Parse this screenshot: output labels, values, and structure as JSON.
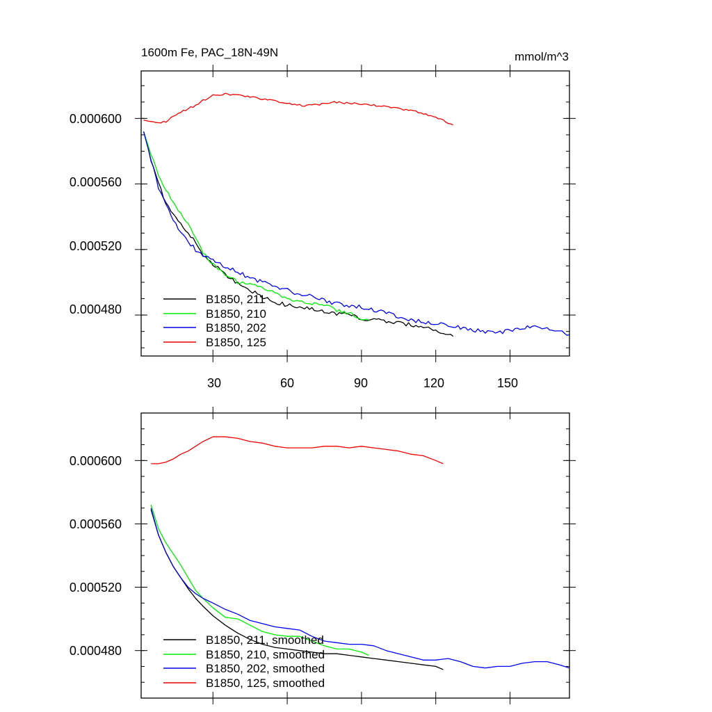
{
  "chart_data": [
    {
      "type": "line",
      "title": "1600m Fe, PAC_18N-49N",
      "units": "mmol/m^3",
      "xlim": [
        1,
        174
      ],
      "ylim": [
        0.000455,
        0.000629
      ],
      "xticks": [
        30,
        60,
        90,
        120,
        150
      ],
      "xtick_labels": [
        "30",
        "60",
        "90",
        "120",
        "150"
      ],
      "yticks": [
        0.00048,
        0.00052,
        0.00056,
        0.0006
      ],
      "ytick_labels": [
        "0.000480",
        "0.000520",
        "0.000560",
        "0.000600"
      ],
      "series": [
        {
          "name": "B1850, 211",
          "color": "#000000",
          "x": [
            2,
            5,
            8,
            11,
            14,
            17,
            20,
            23,
            26,
            30,
            35,
            40,
            45,
            50,
            55,
            60,
            65,
            70,
            75,
            80,
            85,
            90,
            95,
            100,
            105,
            110,
            115,
            120,
            127
          ],
          "y": [
            0.000592,
            0.000575,
            0.00056,
            0.000549,
            0.000541,
            0.000535,
            0.00053,
            0.000524,
            0.000517,
            0.000511,
            0.000505,
            0.000499,
            0.000495,
            0.000491,
            0.000488,
            0.000486,
            0.000485,
            0.000484,
            0.000482,
            0.000481,
            0.00048,
            0.000478,
            0.000477,
            0.000476,
            0.000475,
            0.000474,
            0.000473,
            0.000471,
            0.000467
          ],
          "jitter": 1.2e-06
        },
        {
          "name": "B1850, 210",
          "color": "#00ee00",
          "x": [
            2,
            5,
            8,
            11,
            14,
            17,
            20,
            23,
            26,
            30,
            35,
            40,
            45,
            50,
            55,
            60,
            65,
            70,
            75,
            80,
            85,
            90,
            93
          ],
          "y": [
            0.000592,
            0.000578,
            0.000565,
            0.000557,
            0.000549,
            0.000542,
            0.000535,
            0.000527,
            0.000518,
            0.000511,
            0.000505,
            0.0005,
            0.000499,
            0.000497,
            0.000494,
            0.00049,
            0.000488,
            0.000487,
            0.000486,
            0.000483,
            0.000481,
            0.000478,
            0.000477
          ],
          "jitter": 1e-06
        },
        {
          "name": "B1850, 202",
          "color": "#0000ee",
          "x": [
            2,
            5,
            8,
            11,
            14,
            17,
            20,
            23,
            26,
            30,
            35,
            40,
            45,
            50,
            55,
            60,
            65,
            70,
            75,
            80,
            85,
            90,
            95,
            100,
            105,
            110,
            115,
            120,
            125,
            130,
            135,
            140,
            145,
            150,
            155,
            160,
            165,
            170,
            174
          ],
          "y": [
            0.000592,
            0.000575,
            0.000558,
            0.000547,
            0.000538,
            0.000531,
            0.000525,
            0.00052,
            0.000517,
            0.000513,
            0.00051,
            0.000506,
            0.000503,
            0.0005,
            0.000497,
            0.000495,
            0.000493,
            0.000491,
            0.000489,
            0.000487,
            0.000486,
            0.000485,
            0.000483,
            0.000481,
            0.000479,
            0.000477,
            0.000476,
            0.000475,
            0.000474,
            0.000472,
            0.000471,
            0.00047,
            0.000469,
            0.000471,
            0.000472,
            0.000473,
            0.000472,
            0.00047,
            0.000468
          ],
          "jitter": 1.3e-06
        },
        {
          "name": "B1850, 125",
          "color": "#ee0000",
          "x": [
            2,
            5,
            8,
            11,
            14,
            17,
            20,
            23,
            26,
            30,
            35,
            40,
            45,
            50,
            55,
            60,
            65,
            70,
            75,
            80,
            85,
            90,
            95,
            100,
            105,
            110,
            115,
            120,
            127
          ],
          "y": [
            0.000599,
            0.000598,
            0.000597,
            0.000598,
            0.000601,
            0.000604,
            0.000606,
            0.000608,
            0.000611,
            0.000614,
            0.000615,
            0.000614,
            0.000613,
            0.000612,
            0.000611,
            0.000609,
            0.000608,
            0.000608,
            0.000609,
            0.00061,
            0.000609,
            0.000609,
            0.000608,
            0.000607,
            0.000606,
            0.000605,
            0.000603,
            0.000601,
            0.000596
          ],
          "jitter": 6e-07
        }
      ]
    },
    {
      "type": "line",
      "xlim": [
        1,
        174
      ],
      "ylim": [
        0.00045,
        0.00063
      ],
      "xticks": [
        30,
        60,
        90,
        120,
        150
      ],
      "yticks": [
        0.00048,
        0.00052,
        0.00056,
        0.0006
      ],
      "ytick_labels": [
        "0.000480",
        "0.000520",
        "0.000560",
        "0.000600"
      ],
      "series": [
        {
          "name": "B1850, 211, smoothed",
          "color": "#000000",
          "x": [
            5,
            8,
            11,
            14,
            17,
            20,
            23,
            26,
            30,
            35,
            40,
            45,
            50,
            55,
            60,
            65,
            70,
            75,
            80,
            85,
            90,
            95,
            100,
            105,
            110,
            115,
            120,
            123
          ],
          "y": [
            0.000569,
            0.000553,
            0.000542,
            0.000533,
            0.000526,
            0.000519,
            0.000513,
            0.000508,
            0.000502,
            0.000496,
            0.000491,
            0.000487,
            0.000484,
            0.000482,
            0.000481,
            0.00048,
            0.000479,
            0.000478,
            0.000478,
            0.000477,
            0.000476,
            0.000475,
            0.000474,
            0.000473,
            0.000472,
            0.000471,
            0.00047,
            0.000468
          ]
        },
        {
          "name": "B1850, 210, smoothed",
          "color": "#00ee00",
          "x": [
            5,
            8,
            11,
            14,
            17,
            20,
            23,
            26,
            30,
            35,
            40,
            45,
            50,
            55,
            60,
            65,
            70,
            75,
            80,
            85,
            90,
            93
          ],
          "y": [
            0.000572,
            0.000557,
            0.000548,
            0.000541,
            0.000534,
            0.000526,
            0.000518,
            0.000513,
            0.000507,
            0.000501,
            0.0005,
            0.000496,
            0.000492,
            0.00049,
            0.000489,
            0.000489,
            0.000486,
            0.000483,
            0.000481,
            0.000481,
            0.000479,
            0.000477
          ]
        },
        {
          "name": "B1850, 202, smoothed",
          "color": "#0000ee",
          "x": [
            5,
            8,
            11,
            14,
            17,
            20,
            23,
            26,
            30,
            35,
            40,
            45,
            50,
            55,
            60,
            65,
            70,
            75,
            80,
            85,
            90,
            95,
            100,
            105,
            110,
            115,
            120,
            125,
            130,
            135,
            140,
            145,
            150,
            155,
            160,
            165,
            170,
            174
          ],
          "y": [
            0.00057,
            0.000553,
            0.000542,
            0.000533,
            0.000526,
            0.00052,
            0.000516,
            0.000513,
            0.00051,
            0.000506,
            0.000503,
            0.000499,
            0.000497,
            0.000495,
            0.000494,
            0.000493,
            0.000489,
            0.000486,
            0.000485,
            0.000484,
            0.000484,
            0.000483,
            0.00048,
            0.000478,
            0.000476,
            0.000474,
            0.000474,
            0.000475,
            0.000473,
            0.00047,
            0.000469,
            0.00047,
            0.00047,
            0.000472,
            0.000473,
            0.000473,
            0.000471,
            0.000469
          ]
        },
        {
          "name": "B1850, 125, smoothed",
          "color": "#ee0000",
          "x": [
            5,
            8,
            11,
            14,
            17,
            20,
            23,
            26,
            30,
            35,
            40,
            45,
            50,
            55,
            60,
            65,
            70,
            75,
            80,
            85,
            90,
            95,
            100,
            105,
            110,
            115,
            120,
            123
          ],
          "y": [
            0.000598,
            0.000598,
            0.000599,
            0.000601,
            0.000604,
            0.000606,
            0.000609,
            0.000612,
            0.000615,
            0.000615,
            0.000614,
            0.000612,
            0.000611,
            0.000609,
            0.000608,
            0.000608,
            0.000608,
            0.000609,
            0.000609,
            0.000608,
            0.000609,
            0.000608,
            0.000607,
            0.000606,
            0.000604,
            0.000603,
            0.0006,
            0.000598
          ]
        }
      ]
    }
  ]
}
